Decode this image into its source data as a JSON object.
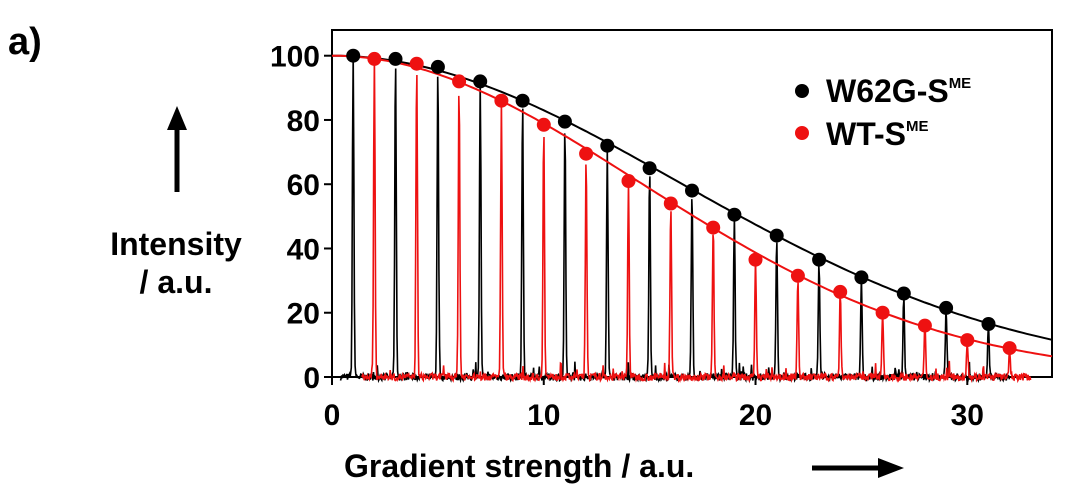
{
  "panel_label": "a)",
  "colors": {
    "black_series": "#000000",
    "red_series": "#ee1111"
  },
  "chart_data": {
    "type": "scatter",
    "xlabel": "Gradient strength / a.u.",
    "ylabel_line1": "Intensity",
    "ylabel_line2": "/ a.u.",
    "xlim": [
      0,
      34
    ],
    "ylim": [
      0,
      108
    ],
    "xticks": [
      "0",
      "10",
      "20",
      "30"
    ],
    "yticks": [
      "0",
      "20",
      "40",
      "60",
      "80",
      "100"
    ],
    "legend_position": "top-right",
    "series": [
      {
        "name": "W62G-S",
        "name_sup": "ME",
        "color": "#000000",
        "x": [
          1,
          3,
          5,
          7,
          9,
          11,
          13,
          15,
          17,
          19,
          21,
          23,
          25,
          27,
          29,
          31
        ],
        "values": [
          100,
          99,
          96.5,
          92,
          86,
          79.5,
          72,
          65,
          58,
          50.5,
          44,
          36.5,
          31,
          26,
          21.5,
          16.5
        ]
      },
      {
        "name": "WT-S",
        "name_sup": "ME",
        "color": "#ee1111",
        "x": [
          2,
          4,
          6,
          8,
          10,
          12,
          14,
          16,
          18,
          20,
          22,
          24,
          26,
          28,
          30,
          32
        ],
        "values": [
          99,
          97.5,
          92,
          86,
          78.5,
          69.5,
          61,
          54,
          46.5,
          36.5,
          31.5,
          26.5,
          20,
          16,
          11.5,
          9
        ]
      }
    ]
  }
}
